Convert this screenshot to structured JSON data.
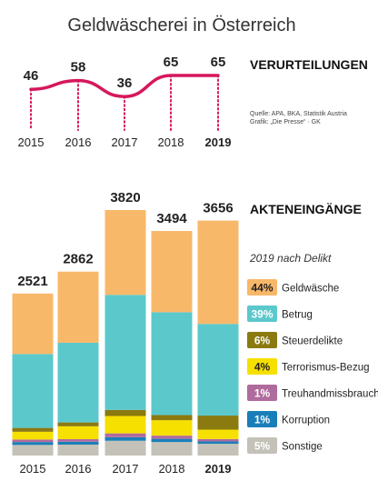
{
  "title": "Geldwäscherei in Österreich",
  "source_lines": [
    "Quelle: APA, BKA, Statistik Austria",
    "Grafik: „Die Presse“ · GK"
  ],
  "chart_data": [
    {
      "type": "line",
      "heading": "VERURTEILUNGEN",
      "x": [
        "2015",
        "2016",
        "2017",
        "2018",
        "2019"
      ],
      "values": [
        46,
        58,
        36,
        65,
        65
      ],
      "color": "#d6175c"
    },
    {
      "type": "bar",
      "stacked": true,
      "heading": "AKTENEINGÄNGE",
      "categories": [
        "2015",
        "2016",
        "2017",
        "2018",
        "2019"
      ],
      "totals": [
        2521,
        2862,
        3820,
        3494,
        3656
      ],
      "legend_title": "2019 nach Delikt",
      "series": [
        {
          "name": "Sonstige",
          "pct": "5%",
          "color": "#c4c2b8",
          "values": [
            165,
            170,
            230,
            210,
            183
          ]
        },
        {
          "name": "Korruption",
          "pct": "1%",
          "color": "#1a7fb8",
          "values": [
            45,
            45,
            55,
            50,
            37
          ]
        },
        {
          "name": "Treuhandmissbrauch",
          "pct": "1%",
          "color": "#b06b9e",
          "values": [
            40,
            40,
            60,
            50,
            37
          ]
        },
        {
          "name": "Terrorismus-Bezug",
          "pct": "4%",
          "color": "#f6e000",
          "values": [
            120,
            200,
            270,
            240,
            146
          ]
        },
        {
          "name": "Steuerdelikte",
          "pct": "6%",
          "color": "#8a7a10",
          "values": [
            60,
            60,
            95,
            80,
            219
          ]
        },
        {
          "name": "Betrug",
          "pct": "39%",
          "color": "#5bc8cc",
          "values": [
            1150,
            1240,
            1790,
            1600,
            1426
          ]
        },
        {
          "name": "Geldwäsche",
          "pct": "44%",
          "color": "#f8b86a",
          "values": [
            941,
            1107,
            1320,
            1264,
            1608
          ]
        }
      ],
      "emphasis_year": "2019"
    }
  ]
}
